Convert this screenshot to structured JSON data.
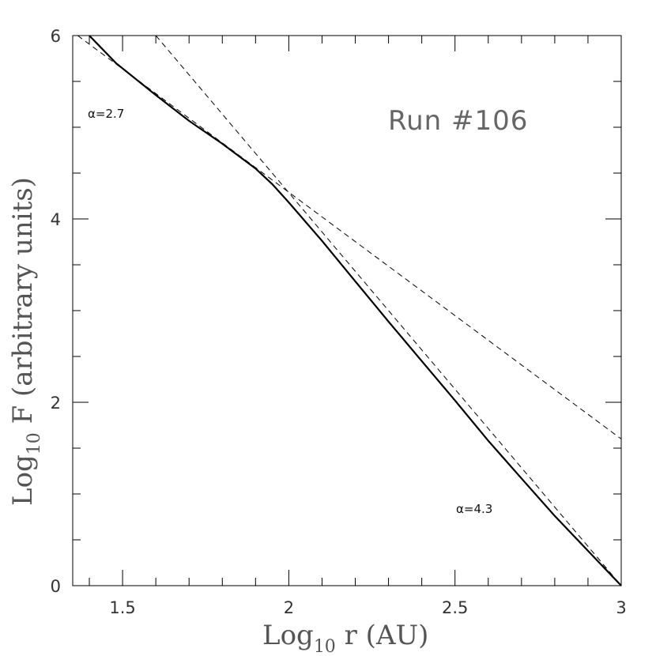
{
  "chart_data": {
    "type": "line",
    "title": "",
    "xlabel_main": "Log",
    "xlabel_sub": "10",
    "xlabel_rest": " r (AU)",
    "ylabel_main": "Log",
    "ylabel_sub": "10",
    "ylabel_rest": " F  (arbitrary units)",
    "xlim": [
      1.35,
      3.0
    ],
    "ylim": [
      0,
      6
    ],
    "xticks": [
      1.5,
      2.0,
      2.5,
      3.0
    ],
    "xtick_labels": [
      "1.5",
      "2",
      "2.5",
      "3"
    ],
    "yticks": [
      0,
      2,
      4,
      6
    ],
    "ytick_labels": [
      "0",
      "2",
      "4",
      "6"
    ],
    "grid": false,
    "series": [
      {
        "style": "solid",
        "x": [
          1.4,
          1.48,
          1.6,
          1.7,
          1.8,
          1.9,
          1.95,
          2.0,
          2.1,
          2.2,
          2.3,
          2.4,
          2.5,
          2.6,
          2.7,
          2.8,
          2.9,
          3.0
        ],
        "y": [
          6.0,
          5.7,
          5.35,
          5.07,
          4.82,
          4.55,
          4.38,
          4.18,
          3.76,
          3.32,
          2.88,
          2.45,
          2.02,
          1.58,
          1.17,
          0.76,
          0.38,
          0.0
        ]
      },
      {
        "style": "dashed",
        "x": [
          1.365,
          3.0
        ],
        "y": [
          6.0,
          1.6
        ]
      },
      {
        "style": "dashed",
        "x": [
          1.6,
          3.0
        ],
        "y": [
          6.0,
          0.0
        ]
      }
    ],
    "annotations": {
      "alpha_low": "α=2.7",
      "alpha_high": "α=4.3",
      "run": "Run #106"
    }
  }
}
